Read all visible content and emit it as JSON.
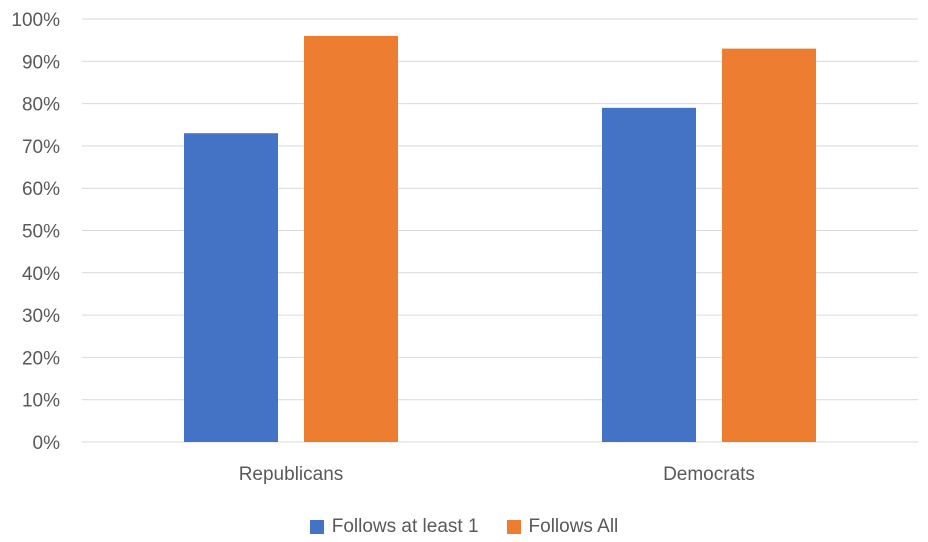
{
  "chart_data": {
    "type": "bar",
    "categories": [
      "Republicans",
      "Democrats"
    ],
    "series": [
      {
        "name": "Follows at least 1",
        "values": [
          73,
          79
        ],
        "color": "#4472C4"
      },
      {
        "name": "Follows All",
        "values": [
          96,
          93
        ],
        "color": "#ED7D31"
      }
    ],
    "ylim": [
      0,
      100
    ],
    "yticks": [
      0,
      10,
      20,
      30,
      40,
      50,
      60,
      70,
      80,
      90,
      100
    ],
    "ytick_suffix": "%",
    "grid": true,
    "legend": "bottom"
  }
}
